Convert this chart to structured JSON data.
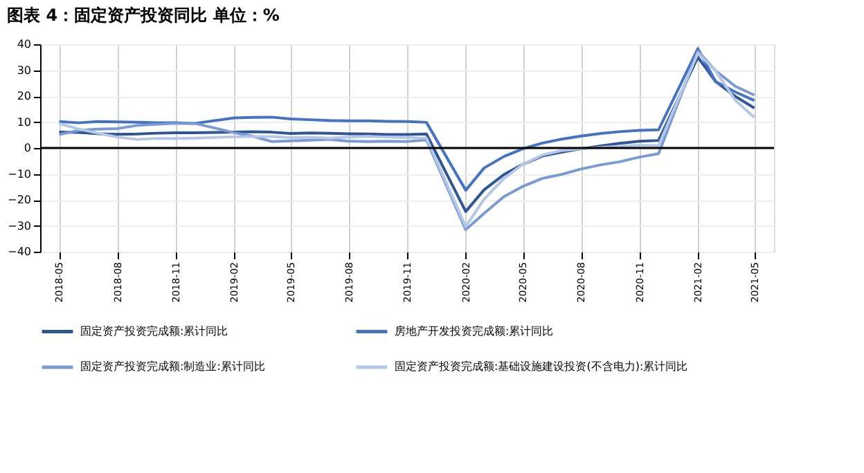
{
  "chart_data": {
    "type": "line",
    "title": "图表 4：固定资产投资同比",
    "subtitle": "单位：%",
    "x": [
      "2018-05",
      "2018-06",
      "2018-07",
      "2018-08",
      "2018-09",
      "2018-10",
      "2018-11",
      "2018-12",
      "2019-02",
      "2019-03",
      "2019-04",
      "2019-05",
      "2019-06",
      "2019-07",
      "2019-08",
      "2019-09",
      "2019-10",
      "2019-11",
      "2019-12",
      "2020-02",
      "2020-03",
      "2020-04",
      "2020-05",
      "2020-06",
      "2020-07",
      "2020-08",
      "2020-09",
      "2020-10",
      "2020-11",
      "2020-12",
      "2021-02",
      "2021-03",
      "2021-04",
      "2021-05"
    ],
    "series": [
      {
        "name": "固定资产投资完成额:累计同比",
        "color": "#2f5597",
        "values": [
          6.1,
          6.0,
          5.5,
          5.3,
          5.4,
          5.7,
          5.9,
          5.9,
          6.1,
          6.3,
          6.1,
          5.6,
          5.8,
          5.7,
          5.5,
          5.4,
          5.2,
          5.2,
          5.4,
          -24.5,
          -16.1,
          -10.3,
          -6.3,
          -3.1,
          -1.6,
          -0.3,
          0.8,
          1.8,
          2.6,
          2.9,
          35.0,
          25.6,
          19.9,
          15.4
        ]
      },
      {
        "name": "房地产开发投资完成额:累计同比",
        "color": "#4472c4",
        "values": [
          10.2,
          9.7,
          10.2,
          10.1,
          9.9,
          9.7,
          9.7,
          9.5,
          11.6,
          11.8,
          11.9,
          11.2,
          10.9,
          10.6,
          10.5,
          10.5,
          10.3,
          10.2,
          9.9,
          -16.3,
          -7.7,
          -3.3,
          -0.3,
          1.9,
          3.4,
          4.6,
          5.6,
          6.3,
          6.8,
          7.0,
          38.3,
          25.6,
          21.6,
          18.3
        ]
      },
      {
        "name": "固定资产投资完成额:制造业:累计同比",
        "color": "#7a9ad6",
        "values": [
          5.2,
          6.8,
          7.3,
          7.5,
          8.7,
          9.1,
          9.5,
          9.5,
          5.9,
          4.6,
          2.5,
          2.7,
          3.0,
          3.3,
          2.6,
          2.5,
          2.6,
          2.5,
          3.1,
          -31.5,
          -25.2,
          -18.8,
          -14.8,
          -11.7,
          -10.2,
          -8.1,
          -6.5,
          -5.3,
          -3.5,
          -2.2,
          37.3,
          29.8,
          23.8,
          20.4
        ]
      },
      {
        "name": "固定资产投资完成额:基础设施建设投资(不含电力):累计同比",
        "color": "#b4c7e7",
        "values": [
          9.4,
          7.3,
          5.7,
          4.2,
          3.3,
          3.7,
          3.7,
          3.8,
          4.3,
          4.4,
          4.4,
          4.0,
          4.1,
          3.8,
          4.2,
          4.5,
          4.2,
          4.0,
          3.8,
          -30.3,
          -19.7,
          -11.8,
          -6.3,
          -2.7,
          -1.0,
          -0.3,
          0.2,
          0.7,
          1.0,
          0.9,
          36.6,
          29.7,
          18.4,
          11.8
        ]
      }
    ],
    "xlim": [
      "2018-04",
      "2021-06"
    ],
    "xticks": [
      {
        "value": "2018-05",
        "label": "2018-05"
      },
      {
        "value": "2018-08",
        "label": "2018-08"
      },
      {
        "value": "2018-11",
        "label": "2018-11"
      },
      {
        "value": "2019-02",
        "label": "2019-02"
      },
      {
        "value": "2019-05",
        "label": "2019-05"
      },
      {
        "value": "2019-08",
        "label": "2019-08"
      },
      {
        "value": "2019-11",
        "label": "2019-11"
      },
      {
        "value": "2020-02",
        "label": "2020-02"
      },
      {
        "value": "2020-05",
        "label": "2020-05"
      },
      {
        "value": "2020-08",
        "label": "2020-08"
      },
      {
        "value": "2020-11",
        "label": "2020-11"
      },
      {
        "value": "2021-02",
        "label": "2021-02"
      },
      {
        "value": "2021-05",
        "label": "2021-05"
      }
    ],
    "ylim": [
      -40,
      40
    ],
    "yticks": [
      -40,
      -30,
      -20,
      -10,
      0,
      10,
      20,
      30,
      40
    ],
    "ref_lines": [
      {
        "axis": "y",
        "value": 0,
        "color": "#000000"
      }
    ],
    "grid": true,
    "legend": "bottom",
    "marker": "none",
    "line_style": "solid"
  }
}
